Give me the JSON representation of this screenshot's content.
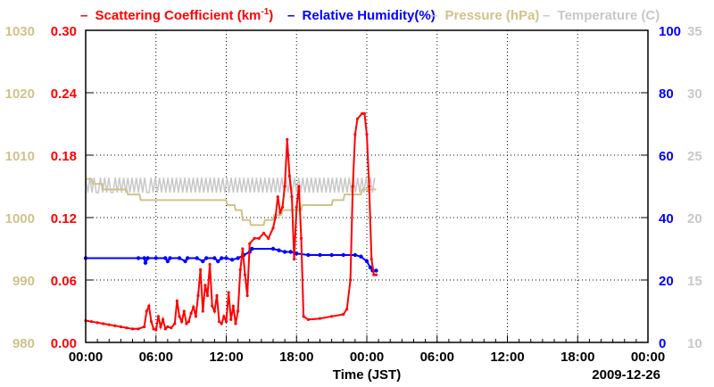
{
  "chart_data": {
    "type": "line",
    "legend": [
      {
        "key": "scattering",
        "label": "Scattering Coefficient (km",
        "superscript": "-1",
        "suffix": ")",
        "color": "#ff0000"
      },
      {
        "key": "humidity",
        "label": "Relative Humidity(%)",
        "color": "#0000ff"
      },
      {
        "key": "pressure",
        "label": "Pressure (hPa)",
        "color": "#cfc38a"
      },
      {
        "key": "temperature",
        "label": "Temperature (C)",
        "color": "#c8c8c8"
      }
    ],
    "legend_dash": "–",
    "xlabel": "Time (JST)",
    "date_label": "2009-12-26",
    "x_range_hours": [
      0,
      48
    ],
    "x_ticks": [
      {
        "h": 0,
        "label": "00:00"
      },
      {
        "h": 6,
        "label": "06:00"
      },
      {
        "h": 12,
        "label": "12:00"
      },
      {
        "h": 18,
        "label": "18:00"
      },
      {
        "h": 24,
        "label": "00:00"
      },
      {
        "h": 30,
        "label": "06:00"
      },
      {
        "h": 36,
        "label": "12:00"
      },
      {
        "h": 42,
        "label": "18:00"
      },
      {
        "h": 48,
        "label": "00:00"
      }
    ],
    "axes": {
      "pressure": {
        "min": 980,
        "max": 1030,
        "ticks": [
          "980",
          "990",
          "1000",
          "1010",
          "1020",
          "1030"
        ],
        "color": "#cfc38a"
      },
      "scattering": {
        "min": 0,
        "max": 0.3,
        "ticks": [
          "0.00",
          "0.06",
          "0.12",
          "0.18",
          "0.24",
          "0.30"
        ],
        "color": "#ff0000"
      },
      "humidity": {
        "min": 0,
        "max": 100,
        "ticks": [
          "0",
          "20",
          "40",
          "60",
          "80",
          "100"
        ],
        "color": "#0000ff"
      },
      "temperature": {
        "min": 10,
        "max": 35,
        "ticks": [
          "10",
          "15",
          "20",
          "25",
          "30",
          "35"
        ],
        "color": "#c8c8c8"
      }
    },
    "series": [
      {
        "name": "Scattering Coefficient",
        "axis": "scattering",
        "color": "#ff0000",
        "markers": true,
        "points": [
          [
            0,
            0.021
          ],
          [
            0.5,
            0.02
          ],
          [
            1,
            0.019
          ],
          [
            1.5,
            0.018
          ],
          [
            2,
            0.017
          ],
          [
            2.5,
            0.016
          ],
          [
            3,
            0.015
          ],
          [
            3.5,
            0.014
          ],
          [
            4,
            0.013
          ],
          [
            4.5,
            0.013
          ],
          [
            5,
            0.015
          ],
          [
            5.2,
            0.03
          ],
          [
            5.4,
            0.035
          ],
          [
            5.6,
            0.02
          ],
          [
            5.8,
            0.013
          ],
          [
            6,
            0.012
          ],
          [
            6.2,
            0.025
          ],
          [
            6.4,
            0.015
          ],
          [
            6.6,
            0.022
          ],
          [
            6.8,
            0.013
          ],
          [
            7,
            0.015
          ],
          [
            7.3,
            0.014
          ],
          [
            7.6,
            0.018
          ],
          [
            7.8,
            0.04
          ],
          [
            8,
            0.025
          ],
          [
            8.2,
            0.02
          ],
          [
            8.4,
            0.03
          ],
          [
            8.6,
            0.018
          ],
          [
            8.8,
            0.02
          ],
          [
            9,
            0.028
          ],
          [
            9.2,
            0.034
          ],
          [
            9.4,
            0.025
          ],
          [
            9.6,
            0.045
          ],
          [
            9.8,
            0.07
          ],
          [
            10,
            0.03
          ],
          [
            10.2,
            0.055
          ],
          [
            10.4,
            0.045
          ],
          [
            10.6,
            0.075
          ],
          [
            10.8,
            0.035
          ],
          [
            11,
            0.03
          ],
          [
            11.2,
            0.045
          ],
          [
            11.4,
            0.02
          ],
          [
            11.6,
            0.018
          ],
          [
            11.8,
            0.025
          ],
          [
            12,
            0.02
          ],
          [
            12.2,
            0.048
          ],
          [
            12.4,
            0.022
          ],
          [
            12.6,
            0.035
          ],
          [
            12.8,
            0.018
          ],
          [
            13,
            0.03
          ],
          [
            13.2,
            0.07
          ],
          [
            13.4,
            0.09
          ],
          [
            13.6,
            0.065
          ],
          [
            13.8,
            0.045
          ],
          [
            14,
            0.095
          ],
          [
            14.4,
            0.1
          ],
          [
            14.8,
            0.1
          ],
          [
            15.2,
            0.105
          ],
          [
            15.6,
            0.1
          ],
          [
            16,
            0.11
          ],
          [
            16.2,
            0.12
          ],
          [
            16.4,
            0.14
          ],
          [
            16.6,
            0.125
          ],
          [
            16.8,
            0.13
          ],
          [
            17,
            0.15
          ],
          [
            17.2,
            0.195
          ],
          [
            17.4,
            0.16
          ],
          [
            17.6,
            0.14
          ],
          [
            17.8,
            0.08
          ],
          [
            18,
            0.13
          ],
          [
            18.2,
            0.15
          ],
          [
            18.4,
            0.1
          ],
          [
            18.6,
            0.025
          ],
          [
            19,
            0.022
          ],
          [
            20,
            0.023
          ],
          [
            21,
            0.025
          ],
          [
            22,
            0.027
          ],
          [
            22.3,
            0.032
          ],
          [
            22.6,
            0.06
          ],
          [
            22.8,
            0.15
          ],
          [
            23,
            0.2
          ],
          [
            23.2,
            0.215
          ],
          [
            23.6,
            0.22
          ],
          [
            23.8,
            0.22
          ],
          [
            24,
            0.2
          ],
          [
            24.2,
            0.15
          ],
          [
            24.4,
            0.08
          ],
          [
            24.6,
            0.065
          ],
          [
            24.8,
            0.065
          ]
        ]
      },
      {
        "name": "Relative Humidity",
        "axis": "humidity",
        "color": "#0000ff",
        "markers": true,
        "points": [
          [
            0,
            27
          ],
          [
            4.5,
            27
          ],
          [
            5,
            27
          ],
          [
            5.1,
            25.5
          ],
          [
            5.3,
            27
          ],
          [
            6,
            27
          ],
          [
            6.8,
            27
          ],
          [
            7,
            26
          ],
          [
            7.2,
            27
          ],
          [
            8,
            27
          ],
          [
            8.5,
            26
          ],
          [
            8.7,
            27
          ],
          [
            9.5,
            27
          ],
          [
            10,
            26
          ],
          [
            10.3,
            27
          ],
          [
            11,
            27
          ],
          [
            11.3,
            26
          ],
          [
            11.6,
            27
          ],
          [
            12,
            27
          ],
          [
            12.5,
            26.5
          ],
          [
            13,
            27
          ],
          [
            13.5,
            28
          ],
          [
            14,
            29
          ],
          [
            14.2,
            30
          ],
          [
            16,
            30
          ],
          [
            16.5,
            29.5
          ],
          [
            17,
            29
          ],
          [
            17.5,
            29
          ],
          [
            18,
            28.5
          ],
          [
            19,
            28
          ],
          [
            20,
            28
          ],
          [
            21,
            28
          ],
          [
            22,
            28
          ],
          [
            23,
            28
          ],
          [
            23.5,
            27.5
          ],
          [
            24,
            26
          ],
          [
            24.3,
            24
          ],
          [
            24.5,
            23
          ],
          [
            24.8,
            23
          ]
        ]
      },
      {
        "name": "Pressure",
        "axis": "pressure",
        "color": "#cfc38a",
        "markers": false,
        "step": true,
        "points": [
          [
            0,
            1006.2
          ],
          [
            0.5,
            1006.2
          ],
          [
            0.6,
            1005.4
          ],
          [
            1.4,
            1005.4
          ],
          [
            1.5,
            1004.5
          ],
          [
            3.5,
            1004.5
          ],
          [
            3.6,
            1003.7
          ],
          [
            4.6,
            1003.7
          ],
          [
            4.7,
            1002.8
          ],
          [
            12,
            1002.8
          ],
          [
            12.1,
            1002
          ],
          [
            12.7,
            1002
          ],
          [
            12.8,
            1001.2
          ],
          [
            13.3,
            1001.2
          ],
          [
            13.4,
            999.6
          ],
          [
            14,
            999.6
          ],
          [
            14.1,
            998.8
          ],
          [
            15.2,
            998.8
          ],
          [
            15.3,
            999.6
          ],
          [
            16,
            999.6
          ],
          [
            16.1,
            1000.4
          ],
          [
            16.7,
            1000.4
          ],
          [
            16.8,
            1001.2
          ],
          [
            18.4,
            1001.2
          ],
          [
            18.5,
            1002
          ],
          [
            21,
            1002
          ],
          [
            21.1,
            1002.8
          ],
          [
            22,
            1002.8
          ],
          [
            22.1,
            1003.7
          ],
          [
            23.5,
            1003.7
          ],
          [
            23.6,
            1004.5
          ],
          [
            24.8,
            1004.5
          ]
        ]
      },
      {
        "name": "Temperature",
        "axis": "temperature",
        "color": "#c8c8c8",
        "markers": false,
        "step": true,
        "points": [
          [
            0,
            23.0
          ],
          [
            24.8,
            23.0
          ]
        ]
      }
    ]
  }
}
